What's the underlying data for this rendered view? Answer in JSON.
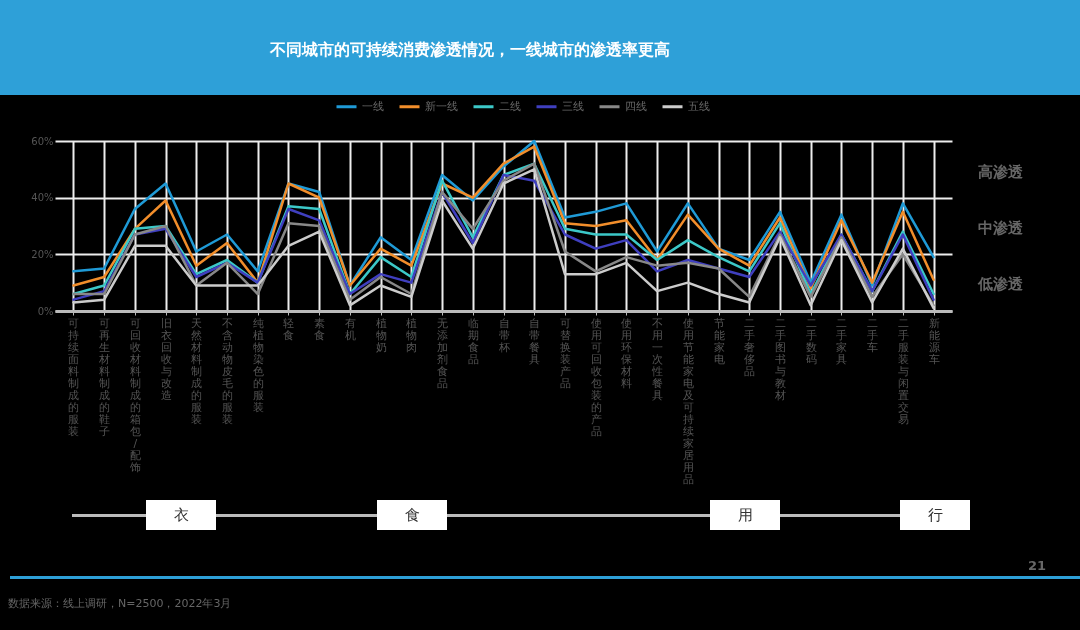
{
  "chart_data": {
    "type": "line",
    "title": "不同城市的可持续消费渗透情况，一线城市的渗透率更高",
    "categories": [
      "可持续面料制成的服装",
      "可再生材料制成的鞋子",
      "可回收材料制成的箱包/配饰",
      "旧衣回收与改造",
      "天然材料制成的服装",
      "不含动物皮毛的服装",
      "纯植物染色的服装",
      "轻食",
      "素食",
      "有机",
      "植物奶",
      "植物肉",
      "无添加剂食品",
      "临期食品",
      "自带杯",
      "自带餐具",
      "可替换装产品",
      "使用可回收包装的产品",
      "使用环保材料",
      "不用一次性餐具",
      "使用节能家电及可持续家居用品",
      "节能家电",
      "二手奢侈品",
      "二手图书与教材",
      "二手数码",
      "二手家具",
      "二手车",
      "二手服装与闲置交易",
      "新能源车"
    ],
    "series": [
      {
        "name": "一线",
        "color": "#1f9ad6",
        "values": [
          14,
          15,
          36,
          45,
          21,
          27,
          14,
          45,
          42,
          9,
          26,
          18,
          48,
          39,
          51,
          60,
          33,
          35,
          38,
          21,
          38,
          22,
          18,
          35,
          10,
          34,
          9,
          38,
          19
        ]
      },
      {
        "name": "新一线",
        "color": "#f28e2b",
        "values": [
          9,
          12,
          29,
          39,
          16,
          24,
          10,
          45,
          40,
          9,
          22,
          16,
          45,
          40,
          52,
          58,
          31,
          30,
          32,
          18,
          34,
          22,
          16,
          33,
          8,
          32,
          10,
          35,
          11
        ]
      },
      {
        "name": "二线",
        "color": "#3cc8c8",
        "values": [
          6,
          9,
          29,
          30,
          13,
          18,
          10,
          37,
          36,
          6,
          19,
          12,
          46,
          26,
          48,
          52,
          29,
          27,
          27,
          18,
          25,
          19,
          14,
          31,
          6,
          27,
          7,
          28,
          6
        ]
      },
      {
        "name": "三线",
        "color": "#3f3fbf",
        "values": [
          4,
          7,
          27,
          29,
          12,
          17,
          10,
          36,
          32,
          6,
          13,
          10,
          42,
          24,
          48,
          46,
          27,
          22,
          25,
          14,
          18,
          15,
          12,
          28,
          9,
          27,
          7,
          27,
          4
        ]
      },
      {
        "name": "四线",
        "color": "#888888",
        "values": [
          6,
          6,
          27,
          30,
          9,
          17,
          6,
          31,
          30,
          4,
          12,
          6,
          42,
          29,
          46,
          52,
          21,
          14,
          19,
          16,
          17,
          15,
          5,
          27,
          5,
          26,
          5,
          20,
          2
        ]
      },
      {
        "name": "五线",
        "color": "#cccccc",
        "values": [
          3,
          4,
          23,
          23,
          9,
          9,
          9,
          23,
          28,
          2,
          9,
          5,
          39,
          22,
          45,
          50,
          13,
          13,
          17,
          7,
          10,
          6,
          3,
          26,
          2,
          25,
          3,
          22,
          1
        ]
      }
    ],
    "ylim": [
      0,
      60
    ],
    "yticks": [
      {
        "value": 0,
        "label": "0%"
      },
      {
        "value": 20,
        "label": "20%"
      },
      {
        "value": 40,
        "label": "40%"
      },
      {
        "value": 60,
        "label": "60%"
      }
    ],
    "grid": true,
    "legend": "top",
    "annotations": [
      "高渗透",
      "中渗透",
      "低渗透",
      "衣",
      "食",
      "用",
      "行",
      "21",
      "数据来源：线上调研，N=2500，2022年3月"
    ]
  }
}
